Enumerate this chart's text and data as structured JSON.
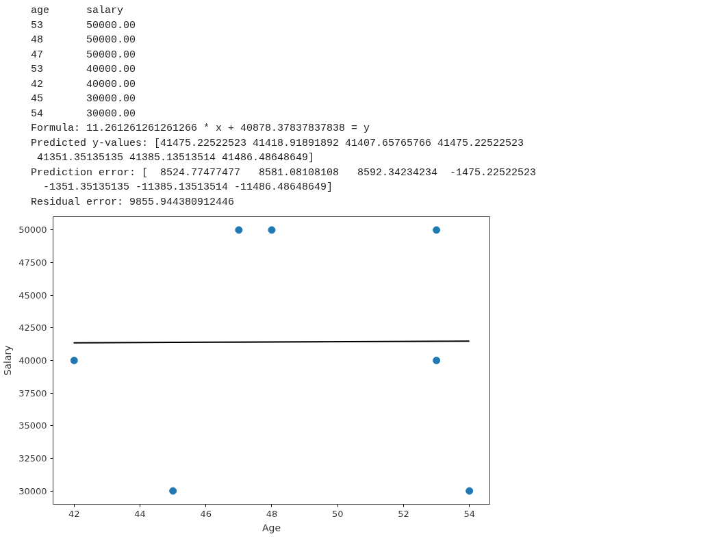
{
  "chart_data": {
    "type": "scatter",
    "xlabel": "Age",
    "ylabel": "Salary",
    "annotations": [
      "age      salary",
      "53       50000.00",
      "48       50000.00",
      "47       50000.00",
      "53       40000.00",
      "42       40000.00",
      "45       30000.00",
      "54       30000.00",
      "Formula: 11.261261261261266 * x + 40878.37837837838 = y",
      "Predicted y-values: [41475.22522523 41418.91891892 41407.65765766 41475.22522523",
      " 41351.35135135 41385.13513514 41486.48648649]",
      "Prediction error: [  8524.77477477   8581.08108108   8592.34234234  -1475.22522523",
      "  -1351.35135135 -11385.13513514 -11486.48648649]",
      "Residual error: 9855.944380912446"
    ],
    "series": [
      {
        "marker": "circle",
        "color": "#1f77b4",
        "x": [
          53,
          48,
          47,
          53,
          42,
          45,
          54
        ],
        "values": [
          50000,
          50000,
          50000,
          40000,
          40000,
          30000,
          30000
        ]
      },
      {
        "type": "line",
        "marker": "none",
        "color": "#000000",
        "x": [
          53,
          48,
          47,
          53,
          42,
          45,
          54
        ],
        "values": [
          41475.22522523,
          41418.91891892,
          41407.65765766,
          41475.22522523,
          41351.35135135,
          41385.13513514,
          41486.48648649
        ]
      }
    ],
    "xlim": [
      41.36,
      54.62
    ],
    "ylim": [
      28980,
      51020
    ],
    "xticks": [
      42,
      44,
      46,
      48,
      50,
      52,
      54
    ],
    "yticks": [
      30000,
      32500,
      35000,
      37500,
      40000,
      42500,
      45000,
      47500,
      50000
    ],
    "grid": false
  }
}
